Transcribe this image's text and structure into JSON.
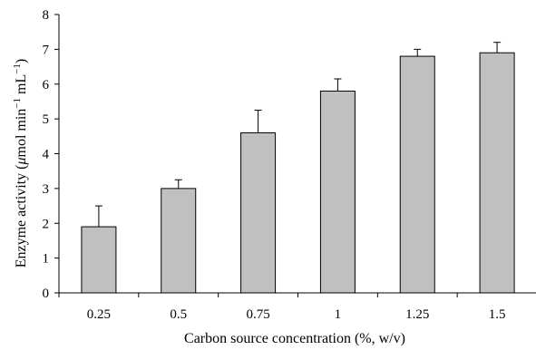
{
  "chart_data": {
    "type": "bar",
    "title": "",
    "categories": [
      "0.25",
      "0.5",
      "0.75",
      "1",
      "1.25",
      "1.5"
    ],
    "values": [
      1.9,
      3.0,
      4.6,
      5.8,
      6.8,
      6.9
    ],
    "errors": [
      0.6,
      0.25,
      0.65,
      0.35,
      0.2,
      0.3
    ],
    "xlabel": "Carbon source concentration (%, w/v)",
    "ylabel_prefix": "Enzyme activity (",
    "ylabel_mu": "μ",
    "ylabel_mid": "mol min",
    "ylabel_sup1": "−1",
    "ylabel_mid2": " mL",
    "ylabel_sup2": "−1",
    "ylabel_suffix": ")",
    "ylim": [
      0,
      8
    ],
    "yticks": [
      "0",
      "1",
      "2",
      "3",
      "4",
      "5",
      "6",
      "7",
      "8"
    ],
    "grid": false,
    "bar_color": "#c0c0c0"
  }
}
